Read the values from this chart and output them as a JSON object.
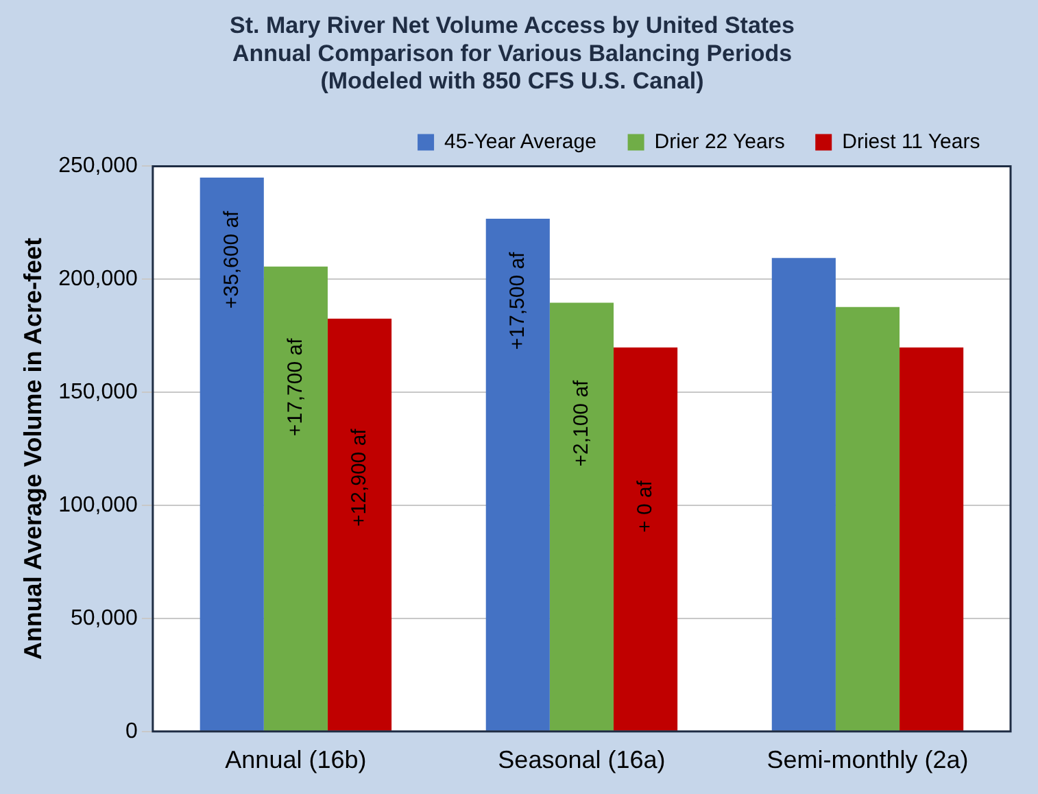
{
  "chart_data": {
    "type": "bar",
    "title": "St. Mary River Net Volume Access by United States\nAnnual Comparison for Various Balancing Periods\n(Modeled with 850 CFS U.S. Canal)",
    "ylabel": "Annual Average Volume in Acre-feet",
    "categories": [
      "Annual (16b)",
      "Seasonal (16a)",
      "Semi-monthly (2a)"
    ],
    "series": [
      {
        "name": "45-Year Average",
        "color": "#4472c4",
        "values": [
          245000,
          226800,
          209400
        ]
      },
      {
        "name": "Drier 22 Years",
        "color": "#70ad47",
        "values": [
          205600,
          189600,
          187700
        ]
      },
      {
        "name": "Driest 11 Years",
        "color": "#c00000",
        "values": [
          182600,
          169800,
          169800
        ]
      }
    ],
    "annotations": [
      "+35,600 af",
      "+17,700 af",
      "+12,900 af",
      "+17,500 af",
      "+2,100 af",
      "+ 0 af"
    ],
    "ylim": [
      0,
      250000
    ],
    "yticks": [
      0,
      {
        "value": 50000,
        "label": "50,000"
      },
      {
        "value": 100000,
        "label": "100,000"
      },
      {
        "value": 150000,
        "label": "150,000"
      },
      {
        "value": 200000,
        "label": "200,000"
      },
      {
        "value": 250000,
        "label": "250,000"
      }
    ],
    "grid": "y",
    "legend": "top right"
  }
}
